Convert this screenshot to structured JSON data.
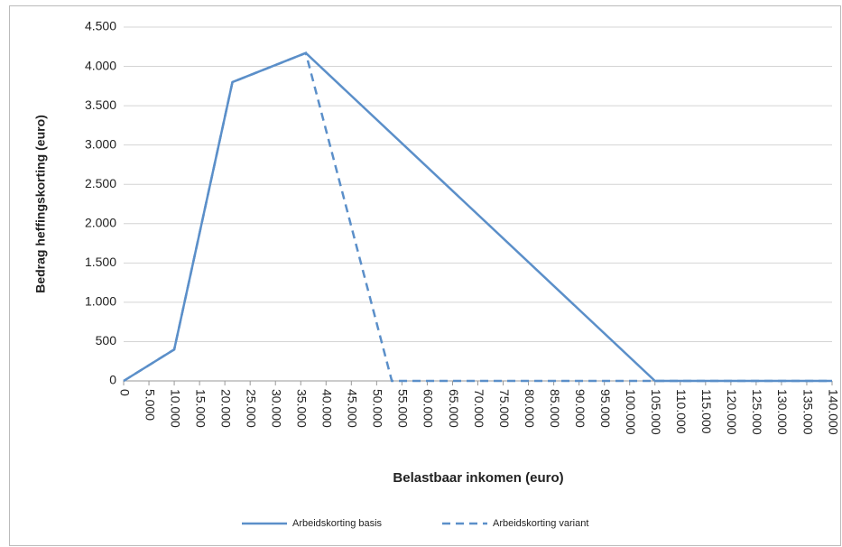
{
  "chart_data": {
    "type": "line",
    "x_label": "Belastbaar inkomen (euro)",
    "y_label": "Bedrag heffingskorting (euro)",
    "series": [
      {
        "name": "Arbeidskorting basis",
        "color": "#5b8fc9",
        "dash": false,
        "x": [
          0,
          10000,
          21500,
          36000,
          105000,
          140000
        ],
        "values": [
          0,
          400,
          3800,
          4170,
          0,
          0
        ]
      },
      {
        "name": "Arbeidskorting variant",
        "color": "#5b8fc9",
        "dash": true,
        "x": [
          0,
          10000,
          21500,
          36000,
          53000,
          140000
        ],
        "values": [
          0,
          400,
          3800,
          4170,
          0,
          0
        ]
      }
    ],
    "xlim": [
      0,
      140000
    ],
    "xticks": [
      0,
      {
        "value": 5000,
        "label": "5.000"
      },
      {
        "value": 10000,
        "label": "10.000"
      },
      {
        "value": 15000,
        "label": "15.000"
      },
      {
        "value": 20000,
        "label": "20.000"
      },
      {
        "value": 25000,
        "label": "25.000"
      },
      {
        "value": 30000,
        "label": "30.000"
      },
      {
        "value": 35000,
        "label": "35.000"
      },
      {
        "value": 40000,
        "label": "40.000"
      },
      {
        "value": 45000,
        "label": "45.000"
      },
      {
        "value": 50000,
        "label": "50.000"
      },
      {
        "value": 55000,
        "label": "55.000"
      },
      {
        "value": 60000,
        "label": "60.000"
      },
      {
        "value": 65000,
        "label": "65.000"
      },
      {
        "value": 70000,
        "label": "70.000"
      },
      {
        "value": 75000,
        "label": "75.000"
      },
      {
        "value": 80000,
        "label": "80.000"
      },
      {
        "value": 85000,
        "label": "85.000"
      },
      {
        "value": 90000,
        "label": "90.000"
      },
      {
        "value": 95000,
        "label": "95.000"
      },
      {
        "value": 100000,
        "label": "100.000"
      },
      {
        "value": 105000,
        "label": "105.000"
      },
      {
        "value": 110000,
        "label": "110.000"
      },
      {
        "value": 115000,
        "label": "115.000"
      },
      {
        "value": 120000,
        "label": "120.000"
      },
      {
        "value": 125000,
        "label": "125.000"
      },
      {
        "value": 130000,
        "label": "130.000"
      },
      {
        "value": 135000,
        "label": "135.000"
      },
      {
        "value": 140000,
        "label": "140.000"
      }
    ],
    "ylim": [
      0,
      4500
    ],
    "yticks": [
      0,
      500,
      {
        "value": 1000,
        "label": "1.000"
      },
      {
        "value": 1500,
        "label": "1.500"
      },
      {
        "value": 2000,
        "label": "2.000"
      },
      {
        "value": 2500,
        "label": "2.500"
      },
      {
        "value": 3000,
        "label": "3.000"
      },
      {
        "value": 3500,
        "label": "3.500"
      },
      {
        "value": 4000,
        "label": "4.000"
      },
      {
        "value": 4500,
        "label": "4.500"
      }
    ],
    "grid": true,
    "legend": "bottom"
  }
}
